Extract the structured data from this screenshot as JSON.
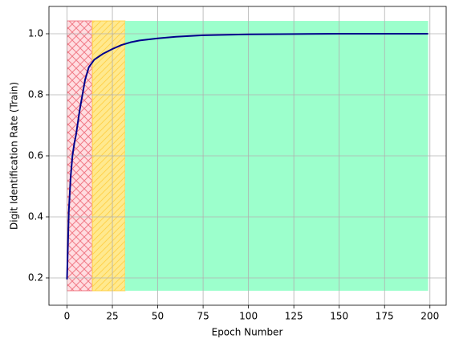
{
  "chart_data": {
    "type": "line",
    "xlabel": "Epoch Number",
    "ylabel": "Digit Identification Rate (Train)",
    "x": [
      0,
      1,
      2,
      3,
      4,
      5,
      7,
      10,
      12,
      15,
      20,
      25,
      30,
      35,
      40,
      50,
      60,
      75,
      100,
      125,
      150,
      175,
      199
    ],
    "series": [
      {
        "color": "#00008b",
        "values": [
          0.195,
          0.42,
          0.53,
          0.6,
          0.64,
          0.67,
          0.75,
          0.85,
          0.89,
          0.915,
          0.935,
          0.95,
          0.963,
          0.972,
          0.978,
          0.985,
          0.99,
          0.995,
          0.998,
          0.999,
          1.0,
          1.0,
          1.0
        ]
      }
    ],
    "regions": [
      {
        "x0": 0,
        "x1": 14,
        "y0": 0.158,
        "y1": 1.042,
        "color": "#ffdde1",
        "edgecolor": "#f07a86",
        "hatch": "x"
      },
      {
        "x0": 14,
        "x1": 32,
        "y0": 0.158,
        "y1": 1.042,
        "color": "#ffe98f",
        "edgecolor": "#ffd24d",
        "hatch": "/"
      },
      {
        "x0": 32,
        "x1": 199,
        "y0": 0.158,
        "y1": 1.042,
        "color": "#9cffcc"
      }
    ],
    "xlim": [
      -9.95,
      208.95
    ],
    "ylim": [
      0.1105,
      1.0895
    ],
    "xticks": [
      0,
      25,
      50,
      75,
      100,
      125,
      150,
      175,
      200
    ],
    "yticks": [
      0.2,
      0.4,
      0.6,
      0.8,
      {
        "value": 1,
        "label": "1.0"
      }
    ],
    "grid": true
  }
}
